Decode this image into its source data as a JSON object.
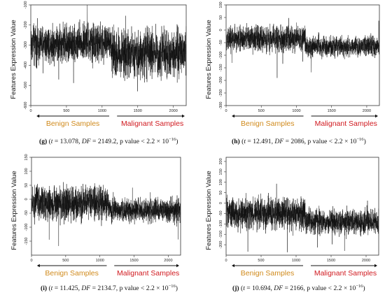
{
  "chart_data": [
    {
      "id": "g",
      "type": "line",
      "ylabel": "Features Expression Value",
      "xlim": [
        0,
        2180
      ],
      "ylim": [
        -600,
        -100
      ],
      "xticks": [
        0,
        500,
        1000,
        1500,
        2000
      ],
      "yticks": [
        -100,
        -200,
        -300,
        -400,
        -500,
        -600
      ],
      "series_profile": {
        "n": 2180,
        "split_index": 1130,
        "benign_center": -290,
        "malignant_center": -340,
        "benign_spread": 70,
        "malignant_spread": 85
      },
      "groups": [
        "Benign Samples",
        "Malignant Samples"
      ],
      "caption": {
        "label": "(g)",
        "t": "13.078",
        "df": "2149.2",
        "p_text": "p value < 2.2 × 10",
        "p_exp": "−16"
      }
    },
    {
      "id": "h",
      "type": "line",
      "ylabel": "Features Expression Value",
      "xlim": [
        0,
        2180
      ],
      "ylim": [
        -300,
        100
      ],
      "xticks": [
        0,
        500,
        1000,
        1500,
        2000
      ],
      "yticks": [
        100,
        50,
        0,
        -50,
        -100,
        -150,
        -200,
        -250,
        -300
      ],
      "series_profile": {
        "n": 2180,
        "split_index": 1130,
        "benign_center": -35,
        "malignant_center": -65,
        "benign_spread": 38,
        "malignant_spread": 30
      },
      "groups": [
        "Benign Samples",
        "Malignant Samples"
      ],
      "caption": {
        "label": "(h)",
        "t": "12.491",
        "df": "2086",
        "p_text": "p value < 2.2 × 10",
        "p_exp": "−16"
      }
    },
    {
      "id": "i",
      "type": "line",
      "ylabel": "Features Expression Value",
      "xlim": [
        0,
        2180
      ],
      "ylim": [
        -200,
        150
      ],
      "xticks": [
        0,
        500,
        1000,
        1500,
        2000
      ],
      "yticks": [
        150,
        100,
        50,
        0,
        -50,
        -100,
        -150
      ],
      "series_profile": {
        "n": 2180,
        "split_index": 1130,
        "benign_center": -15,
        "malignant_center": -40,
        "benign_spread": 45,
        "malignant_spread": 32
      },
      "groups": [
        "Benign Samples",
        "Malignant Samples"
      ],
      "caption": {
        "label": "(i)",
        "t": "11.425",
        "df": "2134.7",
        "p_text": "p value < 2.2 × 10",
        "p_exp": "−16"
      }
    },
    {
      "id": "j",
      "type": "line",
      "ylabel": "Features Expression Value",
      "xlim": [
        0,
        2180
      ],
      "ylim": [
        -250,
        220
      ],
      "xticks": [
        0,
        500,
        1000,
        1500,
        2000
      ],
      "yticks": [
        200,
        150,
        100,
        50,
        0,
        -50,
        -100,
        -150,
        -200
      ],
      "series_profile": {
        "n": 2180,
        "split_index": 1130,
        "benign_center": -50,
        "malignant_center": -90,
        "benign_spread": 55,
        "malignant_spread": 45
      },
      "groups": [
        "Benign Samples",
        "Malignant Samples"
      ],
      "caption": {
        "label": "(j)",
        "t": "10.694",
        "df": "2166",
        "p_text": "p value < 2.2 × 10",
        "p_exp": "−16"
      }
    }
  ],
  "colors": {
    "line": "#111111",
    "benign": "#d08a1c",
    "malignant": "#d0191f"
  }
}
